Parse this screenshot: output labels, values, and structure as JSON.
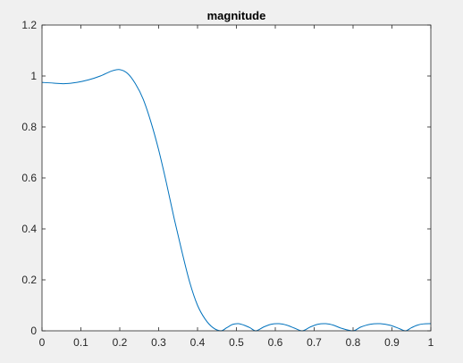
{
  "chart_data": {
    "type": "line",
    "title": "magnitude",
    "xlabel": "",
    "ylabel": "",
    "xlim": [
      0,
      1
    ],
    "ylim": [
      0,
      1.2
    ],
    "xticks": [
      0,
      0.1,
      0.2,
      0.3,
      0.4,
      0.5,
      0.6,
      0.7,
      0.8,
      0.9,
      1
    ],
    "xtick_labels": [
      "0",
      "0.1",
      "0.2",
      "0.3",
      "0.4",
      "0.5",
      "0.6",
      "0.7",
      "0.8",
      "0.9",
      "1"
    ],
    "yticks": [
      0,
      0.2,
      0.4,
      0.6,
      0.8,
      1,
      1.2
    ],
    "ytick_labels": [
      "0",
      "0.2",
      "0.4",
      "0.6",
      "0.8",
      "1",
      "1.2"
    ],
    "grid": false,
    "series": [
      {
        "color": "#0072bd",
        "x": [
          0,
          0.03,
          0.06,
          0.09,
          0.12,
          0.15,
          0.18,
          0.2,
          0.22,
          0.24,
          0.26,
          0.28,
          0.3,
          0.32,
          0.34,
          0.36,
          0.38,
          0.4,
          0.42,
          0.44,
          0.46,
          0.475,
          0.49,
          0.505,
          0.52,
          0.535,
          0.55,
          0.57,
          0.59,
          0.61,
          0.63,
          0.65,
          0.67,
          0.69,
          0.71,
          0.73,
          0.75,
          0.77,
          0.8,
          0.82,
          0.845,
          0.87,
          0.895,
          0.92,
          0.935,
          0.95,
          0.965,
          0.98,
          1
        ],
        "y": [
          0.975,
          0.972,
          0.97,
          0.975,
          0.985,
          1.0,
          1.02,
          1.025,
          1.01,
          0.97,
          0.91,
          0.82,
          0.71,
          0.58,
          0.44,
          0.31,
          0.19,
          0.1,
          0.045,
          0.012,
          0.0,
          0.012,
          0.025,
          0.028,
          0.022,
          0.012,
          0.0,
          0.015,
          0.026,
          0.028,
          0.022,
          0.01,
          0.0,
          0.015,
          0.026,
          0.028,
          0.022,
          0.01,
          0.0,
          0.015,
          0.026,
          0.028,
          0.022,
          0.008,
          0.0,
          0.012,
          0.022,
          0.027,
          0.028
        ]
      }
    ]
  }
}
